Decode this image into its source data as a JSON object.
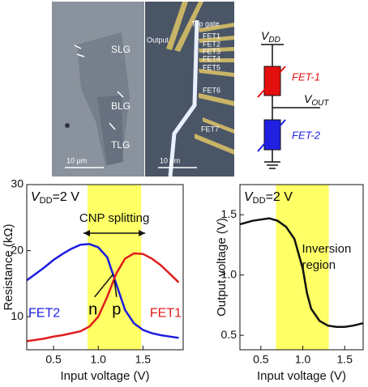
{
  "images": [
    {
      "labels": [
        "SLG",
        "BLG",
        "TLG"
      ],
      "scale_bar": "10 μm"
    },
    {
      "labels": [
        "Output",
        "Top gate",
        "FET1",
        "FET2",
        "FET3",
        "FET4",
        "FET5",
        "FET6",
        "FET7"
      ],
      "scale_bar": "10 μm"
    }
  ],
  "circuit": {
    "supply": {
      "symbol": "V",
      "subscript": "DD"
    },
    "output": {
      "symbol": "V",
      "subscript": "OUT"
    },
    "upper": "FET-1",
    "lower": "FET-2"
  },
  "chart_data": [
    {
      "type": "line",
      "annotation": {
        "symbol": "V",
        "subscript": "DD",
        "text": "=2 V"
      },
      "region_label": "CNP splitting",
      "curve_labels": [
        "n",
        "p"
      ],
      "highlight": [
        0.88,
        1.48
      ],
      "highlight_color": "#ffff66",
      "xlabel": "Input voltage (V)",
      "ylabel": "Resistance (kΩ)",
      "x": [
        0.2,
        0.3,
        0.4,
        0.5,
        0.6,
        0.7,
        0.8,
        0.9,
        1.0,
        1.1,
        1.2,
        1.3,
        1.4,
        1.5,
        1.6,
        1.7,
        1.8,
        1.9
      ],
      "series": [
        {
          "name": "FET2",
          "color": "#1c1ce0",
          "values": [
            15.5,
            16.5,
            17.5,
            18.6,
            19.5,
            20.3,
            20.9,
            21,
            20.5,
            19,
            15,
            11,
            9,
            8,
            7.5,
            7.2,
            7,
            6.8
          ]
        },
        {
          "name": "FET1",
          "color": "#e01c1c",
          "values": [
            6.3,
            6.5,
            6.7,
            7,
            7.2,
            7.5,
            7.8,
            8.5,
            10,
            13,
            16.5,
            18.8,
            19.6,
            19.5,
            18.8,
            17.8,
            16.5,
            15.2
          ]
        }
      ],
      "xlim": [
        0.2,
        1.95
      ],
      "xticks": [
        0.5,
        {
          "value": 1.0,
          "label": "1.0"
        },
        1.5
      ],
      "ylim": [
        5,
        30
      ],
      "yticks": [
        10,
        20,
        30
      ]
    },
    {
      "type": "line",
      "annotation": {
        "symbol": "V",
        "subscript": "DD",
        "text": "=2 V"
      },
      "region_label": [
        "Inversion",
        "region"
      ],
      "highlight": [
        0.68,
        1.31
      ],
      "highlight_color": "#ffff66",
      "xlabel": "Input voltage (V)",
      "ylabel": "Output voltage (V)",
      "x": [
        0.25,
        0.4,
        0.6,
        0.7,
        0.8,
        0.9,
        1.0,
        1.05,
        1.1,
        1.2,
        1.3,
        1.4,
        1.5,
        1.6,
        1.72
      ],
      "values": [
        1.42,
        1.45,
        1.47,
        1.45,
        1.4,
        1.3,
        1.05,
        0.85,
        0.72,
        0.62,
        0.58,
        0.57,
        0.57,
        0.58,
        0.6
      ],
      "color": "#111111",
      "xlim": [
        0.25,
        1.72
      ],
      "xticks": [
        0.5,
        {
          "value": 1.0,
          "label": "1.0"
        },
        1.5
      ],
      "ylim": [
        0.38,
        1.75
      ],
      "yticks": [
        0.5,
        {
          "value": 1.0,
          "label": "1.0"
        },
        1.5
      ]
    }
  ]
}
